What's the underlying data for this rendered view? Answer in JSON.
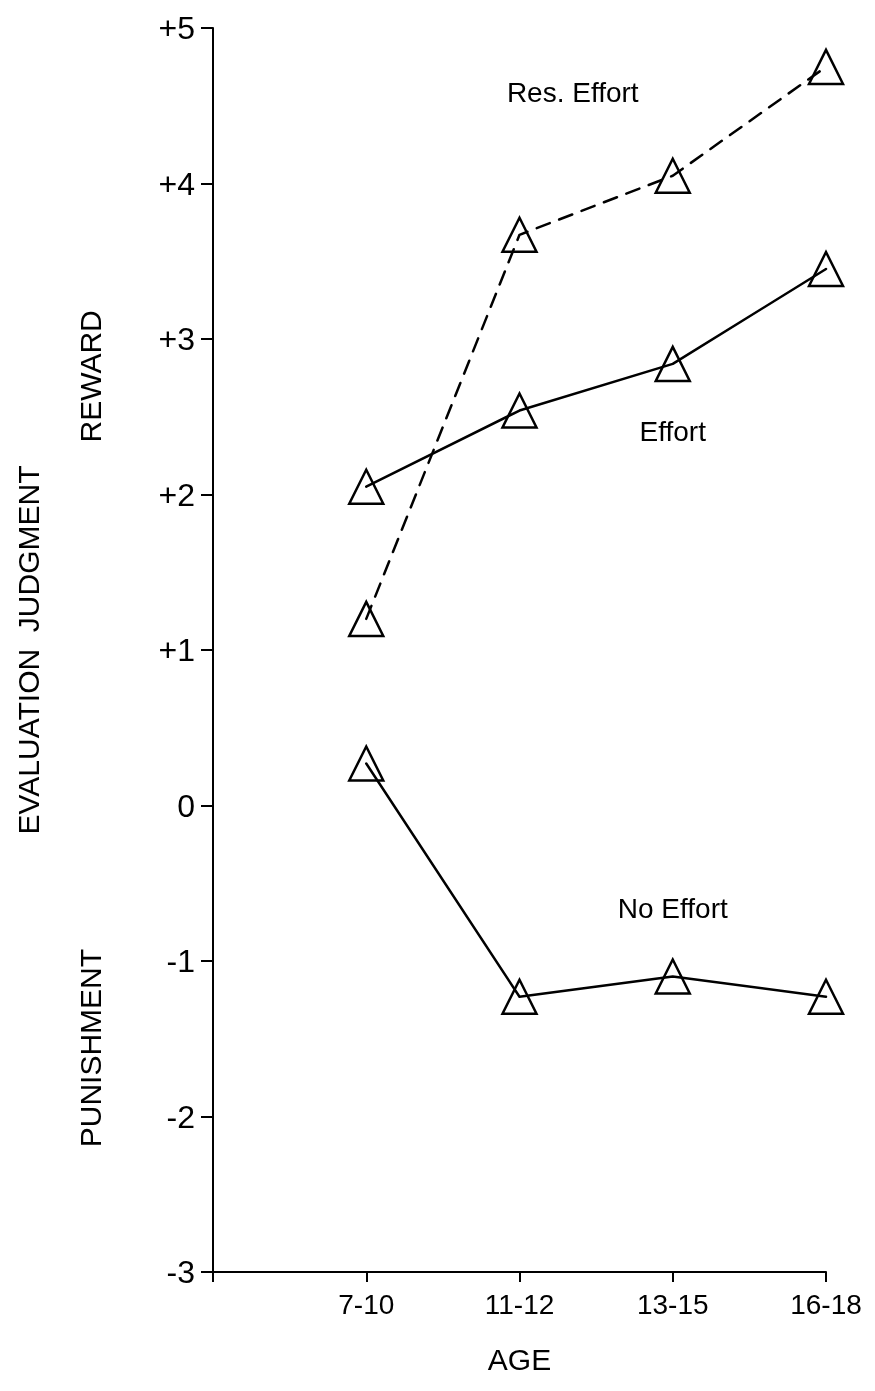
{
  "chart_data": {
    "type": "line",
    "xlabel": "AGE",
    "ylabel": "EVALUATION  JUDGMENT",
    "annotations": [
      "REWARD",
      "PUNISHMENT"
    ],
    "categories": [
      null,
      "7-10",
      "11-12",
      "13-15",
      "16-18"
    ],
    "series": [
      {
        "name": "Res. Effort",
        "color": "#000000",
        "line_style": "dashed",
        "values": [
          null,
          1.2,
          3.67,
          4.05,
          4.75
        ]
      },
      {
        "name": "Effort",
        "color": "#000000",
        "line_style": "solid",
        "values": [
          null,
          2.05,
          2.54,
          2.84,
          3.45
        ]
      },
      {
        "name": "No Effort",
        "color": "#000000",
        "line_style": "solid",
        "values": [
          null,
          0.27,
          -1.23,
          -1.1,
          -1.23
        ]
      }
    ],
    "ylim": [
      -3,
      5
    ],
    "yticks": [
      -3,
      -2,
      -1,
      0,
      {
        "value": 1,
        "label": "+1"
      },
      {
        "value": 2,
        "label": "+2"
      },
      {
        "value": 3,
        "label": "+3"
      },
      {
        "value": 4,
        "label": "+4"
      },
      {
        "value": 5,
        "label": "+5"
      }
    ],
    "grid": false,
    "legend": false,
    "marker": "triangle"
  }
}
